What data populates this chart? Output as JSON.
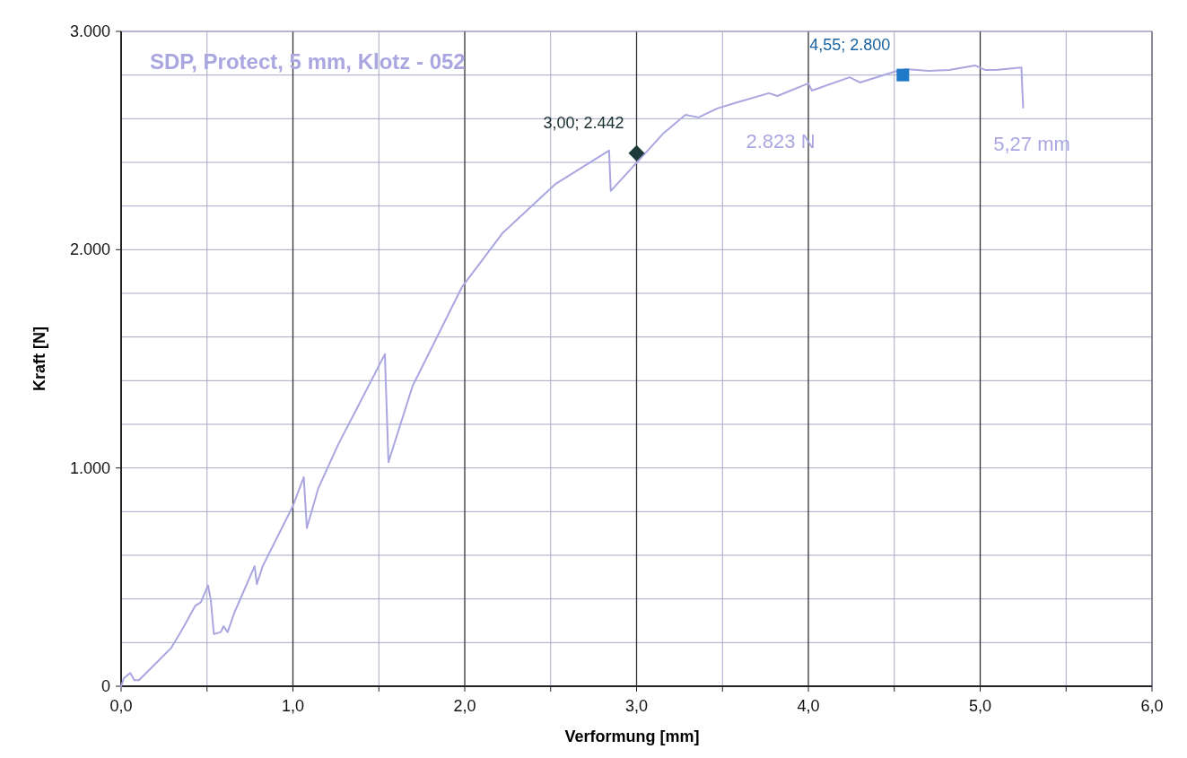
{
  "chart_data": {
    "type": "line",
    "title": "SDP, Protect, 5 mm, Klotz - 052",
    "xlabel": "Verformung [mm]",
    "ylabel": "Kraft [N]",
    "xlim": [
      0,
      6
    ],
    "ylim": [
      0,
      3000
    ],
    "xticks": [
      {
        "value": 0,
        "label": "0,0"
      },
      {
        "value": 0.5,
        "label": null
      },
      {
        "value": 1,
        "label": "1,0"
      },
      {
        "value": 1.5,
        "label": null
      },
      {
        "value": 2,
        "label": "2,0"
      },
      {
        "value": 2.5,
        "label": null
      },
      {
        "value": 3,
        "label": "3,0"
      },
      {
        "value": 3.5,
        "label": null
      },
      {
        "value": 4,
        "label": "4,0"
      },
      {
        "value": 4.5,
        "label": null
      },
      {
        "value": 5,
        "label": "5,0"
      },
      {
        "value": 5.5,
        "label": null
      },
      {
        "value": 6,
        "label": "6,0"
      }
    ],
    "yticks": [
      0,
      {
        "value": 200,
        "label": null
      },
      {
        "value": 400,
        "label": null
      },
      {
        "value": 600,
        "label": null
      },
      {
        "value": 800,
        "label": null
      },
      {
        "value": 1000,
        "label": "1.000"
      },
      {
        "value": 1200,
        "label": null
      },
      {
        "value": 1400,
        "label": null
      },
      {
        "value": 1600,
        "label": null
      },
      {
        "value": 1800,
        "label": null
      },
      {
        "value": 2000,
        "label": "2.000"
      },
      {
        "value": 2200,
        "label": null
      },
      {
        "value": 2400,
        "label": null
      },
      {
        "value": 2600,
        "label": null
      },
      {
        "value": 2800,
        "label": null
      },
      {
        "value": 3000,
        "label": "3.000"
      }
    ],
    "grid": true,
    "series": [
      {
        "color": "#aaa6e0",
        "x": [
          0,
          0.016,
          0.053,
          0.077,
          0.104,
          0.197,
          0.29,
          0.36,
          0.43,
          0.464,
          0.506,
          0.522,
          0.54,
          0.58,
          0.596,
          0.62,
          0.66,
          0.777,
          0.79,
          0.824,
          1.0,
          1.063,
          1.081,
          1.148,
          1.265,
          1.38,
          1.535,
          1.556,
          1.697,
          1.984,
          2.22,
          2.53,
          2.84,
          2.85,
          3.16,
          3.285,
          3.36,
          3.47,
          3.57,
          3.77,
          3.82,
          4.0,
          4.02,
          4.24,
          4.3,
          4.5,
          4.57,
          4.7,
          4.82,
          4.97,
          5.03,
          5.09,
          5.24,
          5.25
        ],
        "values": [
          0,
          37,
          61,
          28,
          28,
          101,
          174,
          266,
          367,
          385,
          462,
          394,
          239,
          248,
          275,
          248,
          339,
          550,
          468,
          550,
          826,
          958,
          725,
          908,
          1110,
          1284,
          1521,
          1027,
          1377,
          1829,
          2076,
          2302,
          2454,
          2269,
          2536,
          2618,
          2606,
          2647,
          2671,
          2717,
          2704,
          2762,
          2729,
          2790,
          2766,
          2815,
          2827,
          2819,
          2823,
          2844,
          2823,
          2823,
          2835,
          2651
        ]
      },
      {
        "type": "scatter",
        "color": "#1f3a3a",
        "marker": "diamond",
        "x": [
          3.0
        ],
        "values": [
          2442
        ]
      },
      {
        "type": "scatter",
        "color": "#1e7ac8",
        "marker": "square",
        "x": [
          4.55
        ],
        "values": [
          2800
        ]
      }
    ],
    "annotations": [
      {
        "text": "3,00; 2.442",
        "x": 3.0,
        "y": 2442
      },
      {
        "text": "4,55; 2.800",
        "x": 4.55,
        "y": 2800
      },
      "2.823 N",
      "5,27 mm"
    ]
  }
}
